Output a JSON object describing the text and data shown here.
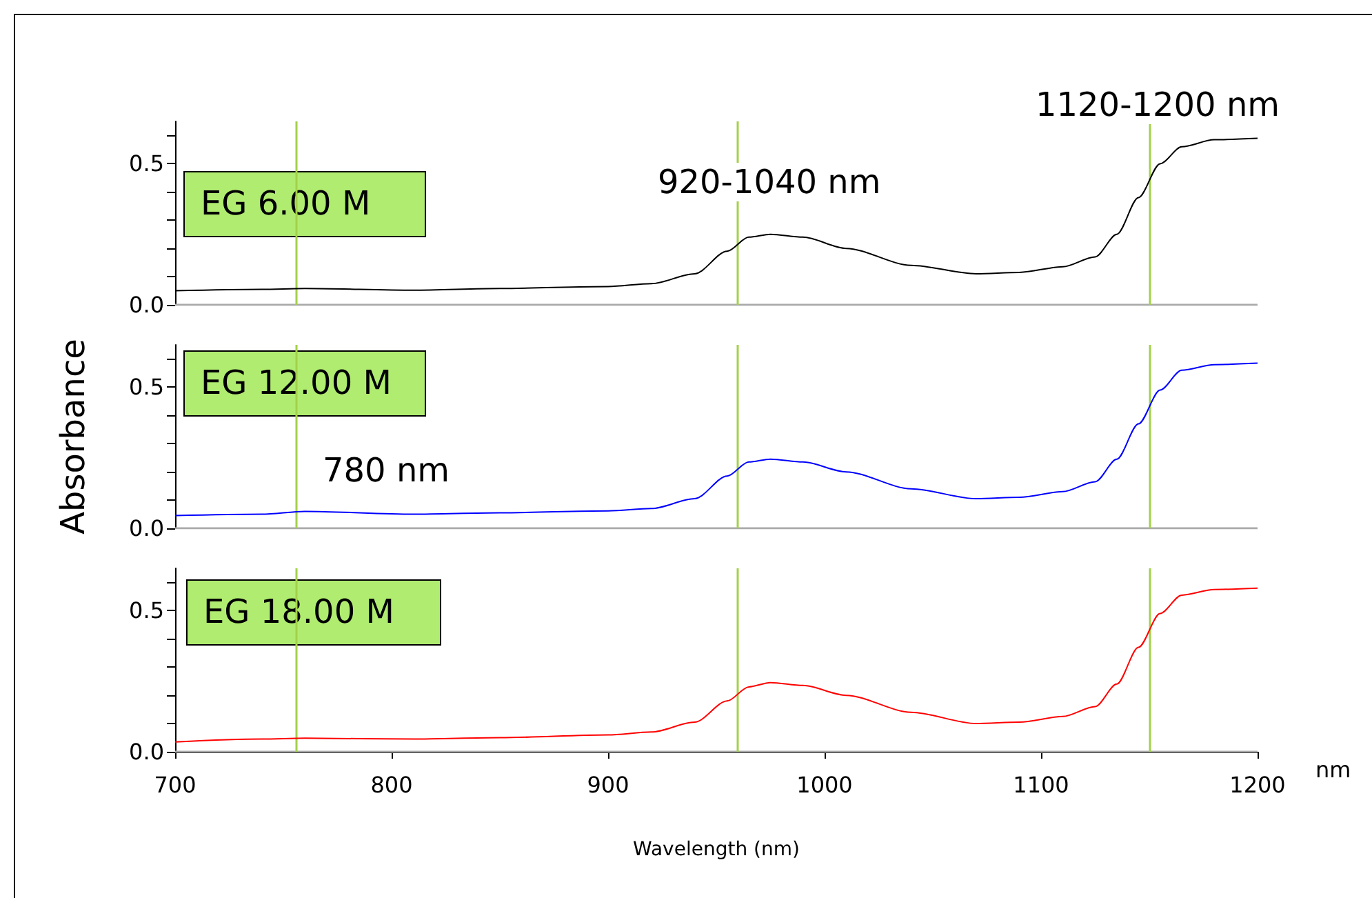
{
  "chart_data": [
    {
      "type": "line",
      "xlim": [
        700,
        1200
      ],
      "xticks": [
        700,
        800,
        900,
        1000,
        1100,
        1200
      ],
      "ylim": [
        0,
        0.65
      ],
      "yticks": [
        {
          "value": 0,
          "label": "0.0"
        },
        {
          "value": 0.1,
          "label": null
        },
        {
          "value": 0.2,
          "label": null
        },
        {
          "value": 0.3,
          "label": null
        },
        {
          "value": 0.4,
          "label": null
        },
        {
          "value": 0.5,
          "label": "0.5"
        },
        {
          "value": 0.6,
          "label": null
        }
      ],
      "tick_labels": "y",
      "grid": false,
      "legend": false,
      "marker": "none",
      "x": [
        700,
        740,
        760,
        810,
        850,
        900,
        920,
        940,
        955,
        965,
        975,
        990,
        1010,
        1040,
        1070,
        1090,
        1110,
        1125,
        1135,
        1145,
        1155,
        1165,
        1180,
        1200
      ],
      "series": [
        {
          "name": "EG 6.00 M",
          "color": "#000000",
          "values": [
            0.05,
            0.055,
            0.058,
            0.052,
            0.058,
            0.065,
            0.075,
            0.11,
            0.19,
            0.24,
            0.25,
            0.24,
            0.2,
            0.14,
            0.11,
            0.115,
            0.135,
            0.17,
            0.25,
            0.38,
            0.5,
            0.56,
            0.585,
            0.59
          ]
        }
      ],
      "ref_lines": [
        {
          "axis": "x",
          "value": 756,
          "color": "#a4d14a"
        },
        {
          "axis": "x",
          "value": 960,
          "color": "#a4d14a"
        },
        {
          "axis": "x",
          "value": 1150,
          "color": "#a4d14a"
        }
      ],
      "annotations": [
        "920-1040 nm",
        "1120-1200 nm"
      ]
    },
    {
      "type": "line",
      "xlim": [
        700,
        1200
      ],
      "xticks": [
        700,
        800,
        900,
        1000,
        1100,
        1200
      ],
      "ylim": [
        0,
        0.65
      ],
      "yticks": [
        {
          "value": 0,
          "label": "0.0"
        },
        {
          "value": 0.1,
          "label": null
        },
        {
          "value": 0.2,
          "label": null
        },
        {
          "value": 0.3,
          "label": null
        },
        {
          "value": 0.4,
          "label": null
        },
        {
          "value": 0.5,
          "label": "0.5"
        },
        {
          "value": 0.6,
          "label": null
        }
      ],
      "tick_labels": "y",
      "grid": false,
      "legend": false,
      "marker": "none",
      "ylabel": "Absorbance",
      "x": [
        700,
        740,
        760,
        810,
        850,
        900,
        920,
        940,
        955,
        965,
        975,
        990,
        1010,
        1040,
        1070,
        1090,
        1110,
        1125,
        1135,
        1145,
        1155,
        1165,
        1180,
        1200
      ],
      "series": [
        {
          "name": "EG 12.00 M",
          "color": "#0000ff",
          "values": [
            0.045,
            0.05,
            0.06,
            0.05,
            0.055,
            0.062,
            0.07,
            0.105,
            0.185,
            0.235,
            0.245,
            0.235,
            0.2,
            0.14,
            0.105,
            0.11,
            0.13,
            0.165,
            0.245,
            0.37,
            0.49,
            0.56,
            0.58,
            0.585
          ]
        }
      ],
      "ref_lines": [
        {
          "axis": "x",
          "value": 756,
          "color": "#a4d14a"
        },
        {
          "axis": "x",
          "value": 960,
          "color": "#a4d14a"
        },
        {
          "axis": "x",
          "value": 1150,
          "color": "#a4d14a"
        }
      ],
      "annotations": [
        "780 nm"
      ]
    },
    {
      "type": "line",
      "xlim": [
        700,
        1200
      ],
      "xticks": [
        700,
        800,
        900,
        1000,
        1100,
        1200
      ],
      "ylim": [
        0,
        0.65
      ],
      "yticks": [
        {
          "value": 0,
          "label": "0.0"
        },
        {
          "value": 0.1,
          "label": null
        },
        {
          "value": 0.2,
          "label": null
        },
        {
          "value": 0.3,
          "label": null
        },
        {
          "value": 0.4,
          "label": null
        },
        {
          "value": 0.5,
          "label": "0.5"
        },
        {
          "value": 0.6,
          "label": null
        }
      ],
      "grid": false,
      "legend": false,
      "marker": "none",
      "xlabel": "Wavelength (nm)",
      "x": [
        700,
        740,
        760,
        810,
        850,
        900,
        920,
        940,
        955,
        965,
        975,
        990,
        1010,
        1040,
        1070,
        1090,
        1110,
        1125,
        1135,
        1145,
        1155,
        1165,
        1180,
        1200
      ],
      "series": [
        {
          "name": "EG 18.00 M",
          "color": "#ff0000",
          "values": [
            0.035,
            0.045,
            0.048,
            0.045,
            0.05,
            0.06,
            0.07,
            0.105,
            0.18,
            0.23,
            0.245,
            0.235,
            0.2,
            0.14,
            0.1,
            0.105,
            0.125,
            0.16,
            0.24,
            0.37,
            0.49,
            0.555,
            0.575,
            0.58
          ]
        }
      ],
      "ref_lines": [
        {
          "axis": "x",
          "value": 756,
          "color": "#a4d14a"
        },
        {
          "axis": "x",
          "value": 960,
          "color": "#a4d14a"
        },
        {
          "axis": "x",
          "value": 1150,
          "color": "#a4d14a"
        }
      ],
      "annotations": [
        "nm"
      ]
    }
  ]
}
